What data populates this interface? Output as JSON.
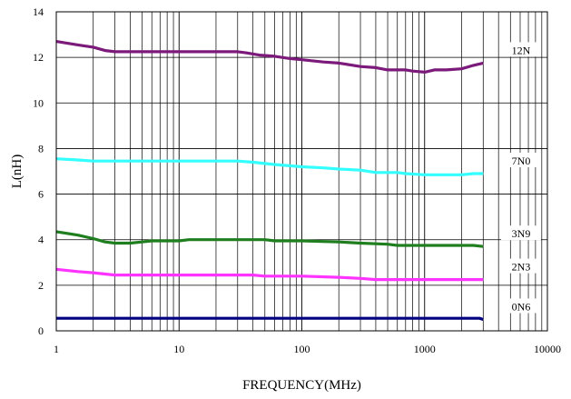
{
  "chart_data": {
    "type": "line",
    "xlabel": "FREQUENCY(MHz)",
    "ylabel": "L(nH)",
    "xscale": "log",
    "xlim": [
      1,
      10000
    ],
    "ylim": [
      0,
      14
    ],
    "grid": true,
    "legend": "inline labels at right",
    "x_ticks": [
      {
        "value": 1,
        "label": "1"
      },
      {
        "value": 10,
        "label": "10"
      },
      {
        "value": 100,
        "label": "100"
      },
      {
        "value": 1000,
        "label": "1000"
      },
      {
        "value": 10000,
        "label": "10000"
      }
    ],
    "y_ticks": [
      {
        "value": 0,
        "label": "0"
      },
      {
        "value": 2,
        "label": "2"
      },
      {
        "value": 4,
        "label": "4"
      },
      {
        "value": 6,
        "label": "6"
      },
      {
        "value": 8,
        "label": "8"
      },
      {
        "value": 10,
        "label": "10"
      },
      {
        "value": 12,
        "label": "12"
      },
      {
        "value": 14,
        "label": "14"
      }
    ],
    "series": [
      {
        "name": "12N",
        "color": "#7b1a7a",
        "points": [
          [
            1,
            12.7
          ],
          [
            1.5,
            12.55
          ],
          [
            2,
            12.45
          ],
          [
            2.5,
            12.3
          ],
          [
            3,
            12.25
          ],
          [
            5,
            12.25
          ],
          [
            10,
            12.25
          ],
          [
            20,
            12.25
          ],
          [
            30,
            12.25
          ],
          [
            35,
            12.2
          ],
          [
            45,
            12.1
          ],
          [
            60,
            12.05
          ],
          [
            80,
            11.95
          ],
          [
            100,
            11.9
          ],
          [
            150,
            11.8
          ],
          [
            200,
            11.75
          ],
          [
            300,
            11.6
          ],
          [
            400,
            11.55
          ],
          [
            500,
            11.45
          ],
          [
            700,
            11.45
          ],
          [
            800,
            11.4
          ],
          [
            1000,
            11.35
          ],
          [
            1200,
            11.45
          ],
          [
            1500,
            11.45
          ],
          [
            2000,
            11.5
          ],
          [
            2500,
            11.65
          ],
          [
            3000,
            11.75
          ]
        ]
      },
      {
        "name": "7N0",
        "color": "#33ffff",
        "points": [
          [
            1,
            7.55
          ],
          [
            1.5,
            7.5
          ],
          [
            2,
            7.45
          ],
          [
            5,
            7.45
          ],
          [
            10,
            7.45
          ],
          [
            20,
            7.45
          ],
          [
            30,
            7.45
          ],
          [
            40,
            7.4
          ],
          [
            60,
            7.3
          ],
          [
            100,
            7.2
          ],
          [
            150,
            7.15
          ],
          [
            200,
            7.1
          ],
          [
            300,
            7.05
          ],
          [
            400,
            6.95
          ],
          [
            600,
            6.95
          ],
          [
            700,
            6.9
          ],
          [
            1000,
            6.85
          ],
          [
            1500,
            6.85
          ],
          [
            2000,
            6.85
          ],
          [
            2500,
            6.9
          ],
          [
            3000,
            6.9
          ]
        ]
      },
      {
        "name": "3N9",
        "color": "#1f7f1f",
        "points": [
          [
            1,
            4.35
          ],
          [
            1.5,
            4.2
          ],
          [
            2,
            4.05
          ],
          [
            2.5,
            3.9
          ],
          [
            3,
            3.85
          ],
          [
            4,
            3.85
          ],
          [
            5,
            3.9
          ],
          [
            6,
            3.95
          ],
          [
            10,
            3.95
          ],
          [
            12,
            4.0
          ],
          [
            20,
            4.0
          ],
          [
            30,
            4.0
          ],
          [
            50,
            4.0
          ],
          [
            60,
            3.95
          ],
          [
            100,
            3.95
          ],
          [
            200,
            3.9
          ],
          [
            300,
            3.85
          ],
          [
            500,
            3.8
          ],
          [
            600,
            3.75
          ],
          [
            1000,
            3.75
          ],
          [
            2000,
            3.75
          ],
          [
            2500,
            3.75
          ],
          [
            3000,
            3.7
          ]
        ]
      },
      {
        "name": "2N3",
        "color": "#ff33ff",
        "points": [
          [
            1,
            2.7
          ],
          [
            1.5,
            2.6
          ],
          [
            2,
            2.55
          ],
          [
            3,
            2.45
          ],
          [
            5,
            2.45
          ],
          [
            10,
            2.45
          ],
          [
            20,
            2.45
          ],
          [
            40,
            2.45
          ],
          [
            50,
            2.4
          ],
          [
            100,
            2.4
          ],
          [
            200,
            2.35
          ],
          [
            300,
            2.3
          ],
          [
            400,
            2.25
          ],
          [
            600,
            2.25
          ],
          [
            1000,
            2.25
          ],
          [
            2000,
            2.25
          ],
          [
            3000,
            2.25
          ]
        ]
      },
      {
        "name": "0N6",
        "color": "#000080",
        "points": [
          [
            1,
            0.55
          ],
          [
            10,
            0.55
          ],
          [
            100,
            0.55
          ],
          [
            1000,
            0.55
          ],
          [
            2800,
            0.55
          ],
          [
            3000,
            0.5
          ]
        ]
      }
    ]
  }
}
